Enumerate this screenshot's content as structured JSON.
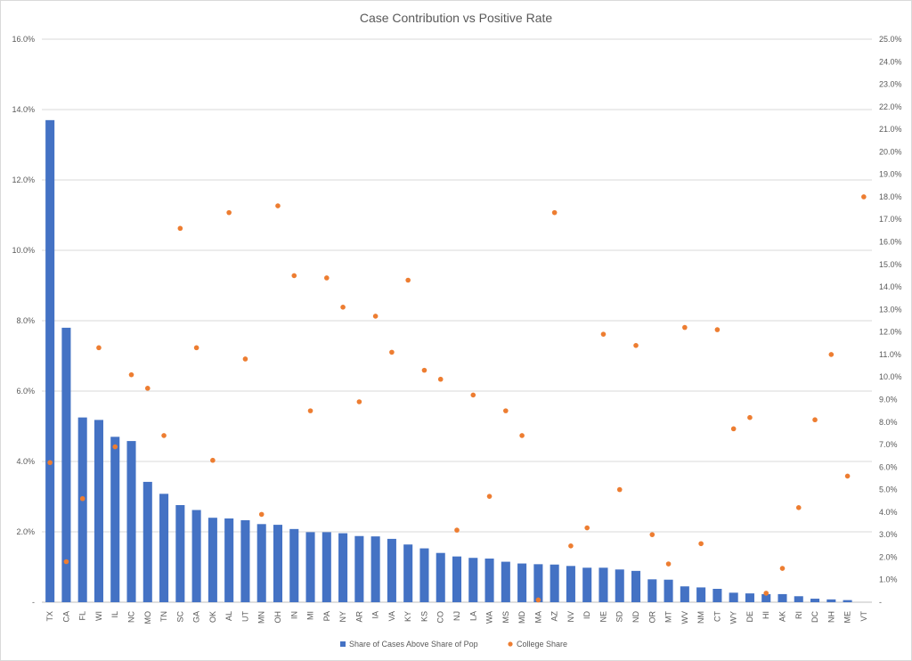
{
  "chart_data": {
    "type": "bar",
    "title": "Case Contribution vs Positive Rate",
    "categories": [
      "TX",
      "CA",
      "FL",
      "WI",
      "IL",
      "NC",
      "MO",
      "TN",
      "SC",
      "GA",
      "OK",
      "AL",
      "UT",
      "MN",
      "OH",
      "IN",
      "MI",
      "PA",
      "NY",
      "AR",
      "IA",
      "VA",
      "KY",
      "KS",
      "CO",
      "NJ",
      "LA",
      "WA",
      "MS",
      "MD",
      "MA",
      "AZ",
      "NV",
      "ID",
      "NE",
      "SD",
      "ND",
      "OR",
      "MT",
      "WV",
      "NM",
      "CT",
      "WY",
      "DE",
      "HI",
      "AK",
      "RI",
      "DC",
      "NH",
      "ME",
      "VT"
    ],
    "series": [
      {
        "name": "Share of Cases Above Share of Pop",
        "type": "bar",
        "axis": "primary",
        "color": "#4472C4",
        "values": [
          13.7,
          7.8,
          5.25,
          5.18,
          4.7,
          4.58,
          3.42,
          3.08,
          2.76,
          2.62,
          2.4,
          2.38,
          2.33,
          2.22,
          2.2,
          2.08,
          1.99,
          1.99,
          1.96,
          1.88,
          1.87,
          1.8,
          1.64,
          1.53,
          1.4,
          1.3,
          1.26,
          1.24,
          1.15,
          1.1,
          1.08,
          1.07,
          1.03,
          0.98,
          0.98,
          0.93,
          0.89,
          0.65,
          0.64,
          0.45,
          0.42,
          0.38,
          0.27,
          0.25,
          0.23,
          0.23,
          0.17,
          0.1,
          0.08,
          0.06,
          0.0
        ]
      },
      {
        "name": "College Share",
        "type": "scatter",
        "axis": "secondary",
        "color": "#ED7D31",
        "values": [
          6.2,
          1.8,
          4.6,
          11.3,
          6.9,
          10.1,
          9.5,
          7.4,
          16.6,
          11.3,
          6.3,
          17.3,
          10.8,
          3.9,
          17.6,
          14.5,
          8.5,
          14.4,
          13.1,
          8.9,
          12.7,
          11.1,
          14.3,
          10.3,
          9.9,
          3.2,
          9.2,
          4.7,
          8.5,
          7.4,
          0.1,
          17.3,
          2.5,
          3.3,
          11.9,
          5.0,
          11.4,
          3.0,
          1.7,
          12.2,
          2.6,
          12.1,
          7.7,
          8.2,
          0.4,
          1.5,
          4.2,
          8.1,
          11.0,
          5.6,
          18.0
        ]
      }
    ],
    "y_axis": {
      "min": 0,
      "max": 16,
      "step": 2,
      "ticks": [
        "-",
        "2.0%",
        "4.0%",
        "6.0%",
        "8.0%",
        "10.0%",
        "12.0%",
        "14.0%",
        "16.0%"
      ]
    },
    "y2_axis": {
      "min": 0,
      "max": 25,
      "step": 1,
      "ticks": [
        "-",
        "1.0%",
        "2.0%",
        "3.0%",
        "4.0%",
        "5.0%",
        "6.0%",
        "7.0%",
        "8.0%",
        "9.0%",
        "10.0%",
        "11.0%",
        "12.0%",
        "13.0%",
        "14.0%",
        "15.0%",
        "16.0%",
        "17.0%",
        "18.0%",
        "19.0%",
        "20.0%",
        "21.0%",
        "22.0%",
        "23.0%",
        "24.0%",
        "25.0%"
      ]
    },
    "grid": true,
    "legend": "bottom"
  }
}
